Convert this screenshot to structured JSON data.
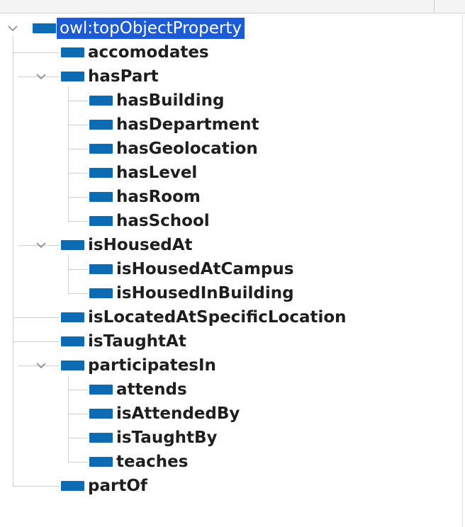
{
  "colors": {
    "icon_fill": "#0d6bb3",
    "selection": "#1d5bd6"
  },
  "tree": {
    "root": {
      "label": "owl:topObjectProperty",
      "icon": "object-property-icon",
      "expanded": true,
      "selected": true
    },
    "children": [
      {
        "label": "accomodates"
      },
      {
        "label": "hasPart",
        "expanded": true,
        "children": [
          {
            "label": "hasBuilding"
          },
          {
            "label": "hasDepartment"
          },
          {
            "label": "hasGeolocation"
          },
          {
            "label": "hasLevel"
          },
          {
            "label": "hasRoom"
          },
          {
            "label": "hasSchool"
          }
        ]
      },
      {
        "label": "isHousedAt",
        "expanded": true,
        "children": [
          {
            "label": "isHousedAtCampus"
          },
          {
            "label": "isHousedInBuilding"
          }
        ]
      },
      {
        "label": "isLocatedAtSpecificLocation"
      },
      {
        "label": "isTaughtAt"
      },
      {
        "label": "participatesIn",
        "expanded": true,
        "children": [
          {
            "label": "attends"
          },
          {
            "label": "isAttendedBy"
          },
          {
            "label": "isTaughtBy"
          },
          {
            "label": "teaches"
          }
        ]
      },
      {
        "label": "partOf"
      }
    ]
  }
}
